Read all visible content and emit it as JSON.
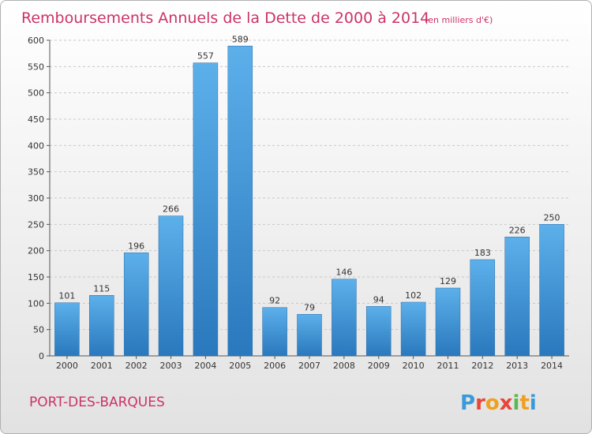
{
  "chart_data": {
    "type": "bar",
    "title": "Remboursements Annuels de la Dette de 2000 à 2014",
    "subtitle": "(en milliers d'€)",
    "categories": [
      "2000",
      "2001",
      "2002",
      "2003",
      "2004",
      "2005",
      "2006",
      "2007",
      "2008",
      "2009",
      "2010",
      "2011",
      "2012",
      "2013",
      "2014"
    ],
    "values": [
      101,
      115,
      196,
      266,
      557,
      589,
      92,
      79,
      146,
      94,
      102,
      129,
      183,
      226,
      250
    ],
    "ylim": [
      0,
      600
    ],
    "yticks": [
      0,
      50,
      100,
      150,
      200,
      250,
      300,
      350,
      400,
      450,
      500,
      550,
      600
    ],
    "grid": true,
    "bar_color": "#4a9fdc",
    "title_color": "#cc3366"
  },
  "footer": {
    "city": "PORT-DES-BARQUES",
    "brand": "Proxiti"
  }
}
